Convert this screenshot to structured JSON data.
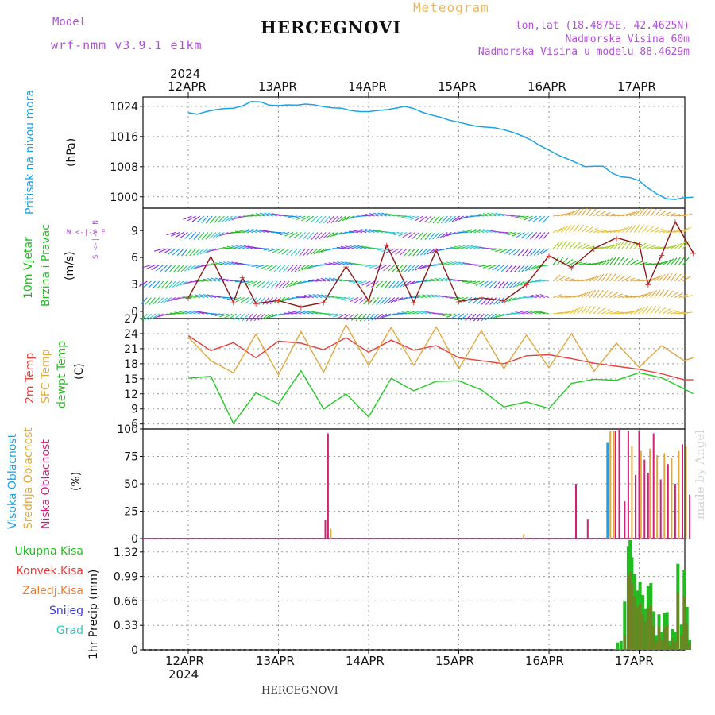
{
  "header": {
    "model_label": "Model",
    "model_name": "wrf-nmm_v3.9.1 e1km",
    "title": "HERCEGNOVI",
    "subtitle": "Meteogram",
    "lonlat": "lon,lat (18.4875E, 42.4625N)",
    "altitude": "Nadmorska Visina 60m",
    "model_altitude": "Nadmorska Visina u modelu 88.4629m",
    "footer_station": "HERCEGNOVI",
    "watermark": "made by Angel"
  },
  "colors": {
    "pressure": "#1aa3e8",
    "temp2m": "#e8403a",
    "sfctemp": "#e0a840",
    "dewpt": "#22cc22",
    "visoka": "#1aa3e8",
    "srednja": "#e0a840",
    "niska": "#d0207a",
    "ukupna": "#22bb22",
    "konvek": "#e83c3c",
    "zaledj": "#f07a30",
    "snijeg": "#3a3ae8",
    "grad": "#33c6c0",
    "purple": "#b050d8"
  },
  "chart_data": [
    {
      "type": "line",
      "panel": "pressure",
      "ylabel_main": "Pritisak na nivou mora",
      "ylabel_unit": "(hPa)",
      "yticks": [
        1000,
        1008,
        1016,
        1024
      ],
      "ylim": [
        997,
        1026.5
      ],
      "x_days": [
        0,
        0.1,
        0.2,
        0.3,
        0.4,
        0.5,
        0.6,
        0.7,
        0.8,
        0.9,
        1.0,
        1.1,
        1.2,
        1.3,
        1.4,
        1.5,
        1.6,
        1.7,
        1.8,
        1.9,
        2.0,
        2.1,
        2.2,
        2.3,
        2.4,
        2.5,
        2.6,
        2.7,
        2.8,
        2.9,
        3.0,
        3.1,
        3.2,
        3.3,
        3.4,
        3.5,
        3.6,
        3.7,
        3.8,
        3.9,
        4.0,
        4.1,
        4.2,
        4.3,
        4.4,
        4.5,
        4.6,
        4.7,
        4.8,
        4.9,
        5.0,
        5.1,
        5.2,
        5.3,
        5.4,
        5.5,
        5.6
      ],
      "values": [
        1022.3,
        1021.9,
        1022.6,
        1023.1,
        1023.4,
        1023.5,
        1024.1,
        1025.3,
        1025.2,
        1024.3,
        1024.2,
        1024.4,
        1024.3,
        1024.6,
        1024.4,
        1023.9,
        1023.6,
        1023.5,
        1022.9,
        1022.6,
        1022.6,
        1022.9,
        1023.1,
        1023.5,
        1024.0,
        1023.4,
        1022.4,
        1021.7,
        1021.1,
        1020.3,
        1019.8,
        1019.2,
        1018.7,
        1018.5,
        1018.3,
        1017.8,
        1017.1,
        1016.2,
        1015.1,
        1013.6,
        1012.4,
        1011.1,
        1010.1,
        1009.1,
        1008.0,
        1008.1,
        1008.1,
        1006.3,
        1005.3,
        1005.1,
        1004.3,
        1002.3,
        1000.7,
        999.5,
        999.3,
        999.8,
        999.9
      ]
    },
    {
      "type": "line",
      "panel": "wind",
      "ylabel_main": "10m Vjetar",
      "ylabel_sub": "Brzina i Pravac",
      "ylabel_unit": "(m/s)",
      "compass": "W <-|-> E",
      "compass_vertical": "S <-|-> N",
      "yticks": [
        0,
        3,
        6,
        9
      ],
      "ylim": [
        -0.8,
        11.5
      ],
      "x_days": [
        0,
        0.25,
        0.5,
        0.6,
        0.75,
        1.0,
        1.25,
        1.5,
        1.75,
        2.0,
        2.2,
        2.5,
        2.75,
        3.0,
        3.25,
        3.5,
        3.75,
        4.0,
        4.25,
        4.5,
        4.75,
        5.0,
        5.1,
        5.25,
        5.4,
        5.6
      ],
      "values": [
        1.5,
        6.1,
        1.0,
        3.8,
        0.9,
        1.2,
        0.5,
        1.0,
        5.0,
        1.2,
        7.4,
        1.0,
        6.8,
        1.1,
        1.5,
        1.2,
        3.0,
        6.2,
        4.9,
        7.0,
        8.2,
        7.5,
        3.0,
        6.3,
        10.0,
        6.5
      ]
    },
    {
      "type": "line",
      "panel": "temperature",
      "ylabel_lines": [
        "2m Temp",
        "SFC Temp",
        "dewpt Temp"
      ],
      "ylabel_unit": "(C)",
      "yticks": [
        6,
        9,
        12,
        15,
        18,
        21,
        24,
        27
      ],
      "ylim": [
        5,
        27
      ],
      "x_days": [
        0,
        0.25,
        0.5,
        0.75,
        1.0,
        1.25,
        1.5,
        1.75,
        2.0,
        2.25,
        2.5,
        2.75,
        3.0,
        3.25,
        3.5,
        3.75,
        4.0,
        4.25,
        4.5,
        4.75,
        5.0,
        5.25,
        5.5,
        5.6
      ],
      "series": [
        {
          "name": "2m Temp",
          "color_key": "temp2m",
          "values": [
            23.6,
            20.6,
            22.2,
            19.2,
            22.5,
            22.1,
            20.8,
            23.2,
            20.3,
            22.7,
            20.7,
            21.6,
            19.2,
            18.6,
            18.0,
            19.6,
            19.8,
            19.0,
            18.1,
            17.5,
            16.9,
            16.0,
            14.8,
            14.8
          ]
        },
        {
          "name": "SFC Temp",
          "color_key": "sfctemp",
          "values": [
            23.3,
            18.6,
            16.2,
            23.9,
            15.8,
            24.4,
            16.3,
            25.8,
            17.7,
            25.2,
            17.7,
            25.3,
            17.0,
            24.6,
            17.0,
            23.7,
            17.2,
            24.0,
            16.5,
            22.1,
            17.3,
            21.6,
            18.6,
            19.2
          ]
        },
        {
          "name": "dewpt Temp",
          "color_key": "dewpt",
          "values": [
            15.1,
            15.5,
            6.1,
            12.2,
            10.0,
            16.6,
            9.0,
            12.0,
            7.4,
            15.1,
            12.6,
            14.5,
            14.6,
            12.8,
            9.4,
            10.4,
            9.1,
            14.1,
            14.9,
            14.7,
            16.2,
            15.2,
            13.0,
            12.0
          ]
        }
      ]
    },
    {
      "type": "bar",
      "panel": "cloud",
      "ylabel_lines": [
        "Visoka Oblacnost",
        "Srednja Oblacnost",
        "Niska Oblacnost"
      ],
      "ylabel_unit": "(%)",
      "yticks": [
        0,
        25,
        50,
        75,
        100
      ],
      "ylim": [
        0,
        100
      ],
      "series": [
        {
          "name": "Visoka Oblacnost",
          "color_key": "visoka",
          "x_days": [
            4.65
          ],
          "values": [
            88
          ]
        },
        {
          "name": "Srednja Oblacnost",
          "color_key": "srednja",
          "x_days": [
            1.58,
            3.72,
            4.68,
            4.72,
            4.92,
            5.02,
            5.12,
            5.2,
            5.28,
            5.36,
            5.44,
            5.52
          ],
          "values": [
            9,
            4,
            98,
            98,
            84,
            80,
            82,
            76,
            78,
            74,
            80,
            84
          ]
        },
        {
          "name": "Niska Oblacnost",
          "color_key": "niska",
          "x_days": [
            1.52,
            1.55,
            4.3,
            4.43,
            4.74,
            4.78,
            4.84,
            4.88,
            4.96,
            5.0,
            5.06,
            5.1,
            5.16,
            5.24,
            5.32,
            5.4,
            5.48,
            5.56
          ],
          "values": [
            17,
            96,
            50,
            18,
            98,
            100,
            34,
            98,
            58,
            98,
            72,
            60,
            96,
            54,
            68,
            50,
            86,
            40
          ]
        }
      ]
    },
    {
      "type": "bar",
      "panel": "precip",
      "ylabel_unit": "1hr Precip (mm)",
      "legend": [
        "Ukupna Kisa",
        "Konvek.Kisa",
        "Zaledj.Kisa",
        "Snijeg",
        "Grad"
      ],
      "yticks": [
        0,
        0.33,
        0.66,
        0.99,
        1.32
      ],
      "ytick_labels": [
        "0",
        "0.33",
        "0.66",
        "0.99",
        "1.32"
      ],
      "ylim": [
        0,
        1.5
      ],
      "x_days": [
        4.76,
        4.8,
        4.84,
        4.88,
        4.9,
        4.92,
        4.95,
        4.98,
        5.01,
        5.04,
        5.07,
        5.1,
        5.13,
        5.16,
        5.19,
        5.22,
        5.25,
        5.28,
        5.31,
        5.34,
        5.37,
        5.4,
        5.43,
        5.47,
        5.5,
        5.53,
        5.56
      ],
      "series": [
        {
          "name": "Ukupna Kisa",
          "color_key": "ukupna",
          "values": [
            0.1,
            0.12,
            0.65,
            1.4,
            1.48,
            1.25,
            1.02,
            0.8,
            0.92,
            0.74,
            0.56,
            0.86,
            0.9,
            0.52,
            0.2,
            0.48,
            0.24,
            0.5,
            0.51,
            0.12,
            0.28,
            0.24,
            1.16,
            0.34,
            1.08,
            0.58,
            0.14
          ]
        },
        {
          "name": "Konvek.Kisa",
          "color_key": "konvek",
          "values": [
            0.0,
            0.0,
            0.2,
            1.0,
            1.05,
            0.9,
            0.72,
            0.58,
            0.62,
            0.48,
            0.38,
            0.56,
            0.6,
            0.32,
            0.12,
            0.3,
            0.14,
            0.3,
            0.33,
            0.06,
            0.16,
            0.12,
            0.78,
            0.2,
            0.72,
            0.36,
            0.1
          ]
        }
      ]
    }
  ],
  "xaxis": {
    "day_labels": [
      "12APR",
      "13APR",
      "14APR",
      "15APR",
      "16APR",
      "17APR"
    ],
    "year_label": "2024"
  }
}
